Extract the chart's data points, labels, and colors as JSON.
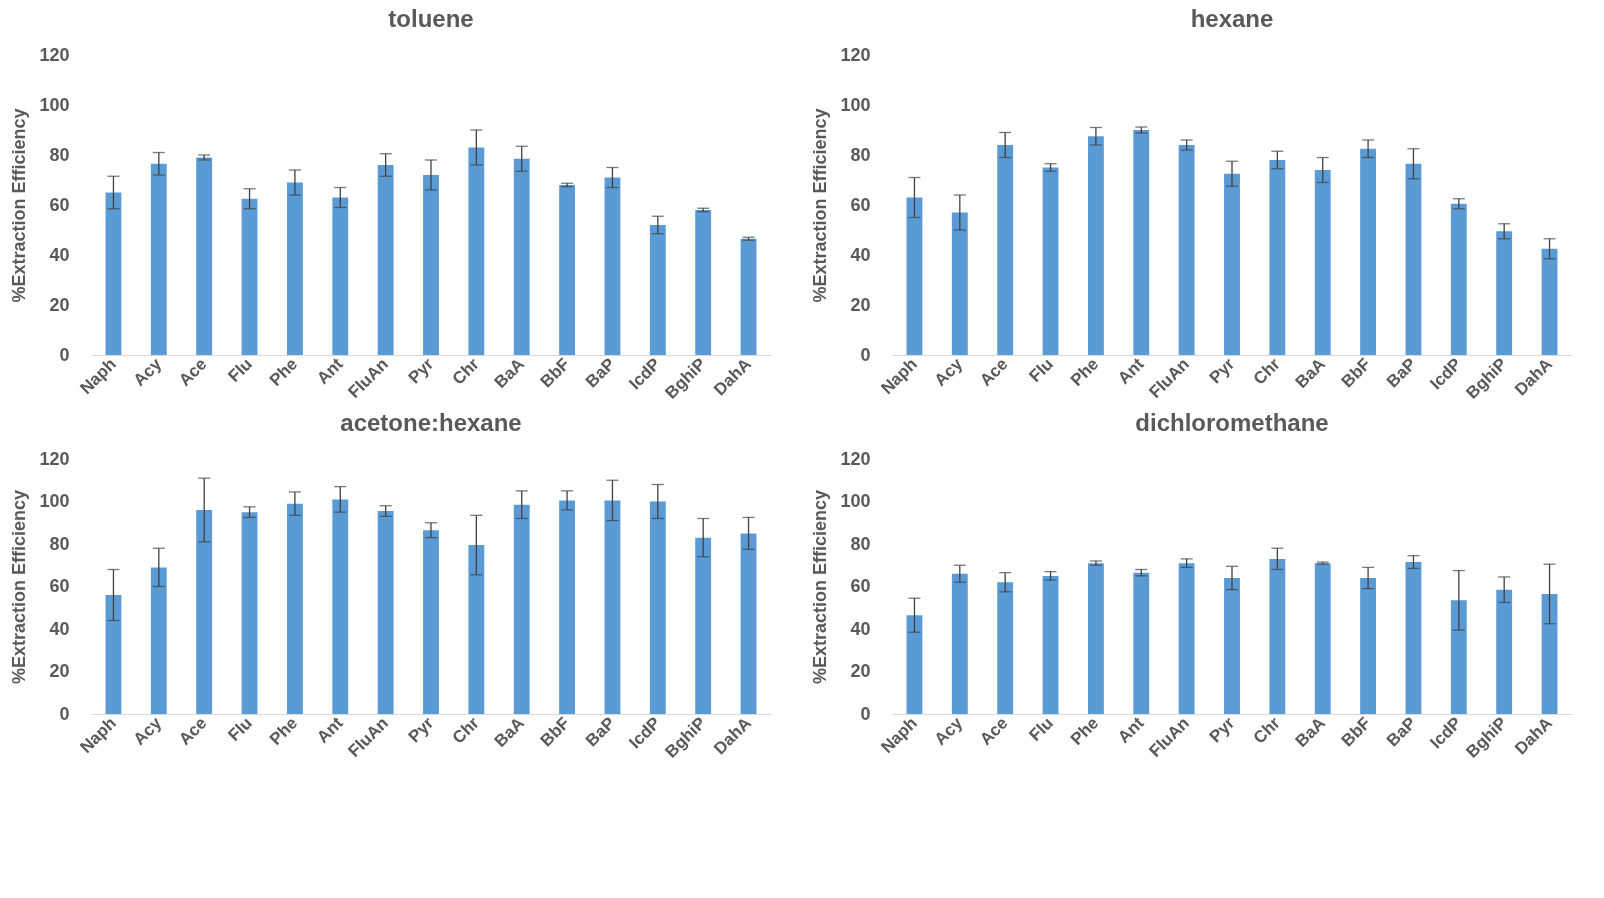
{
  "chart_data": [
    {
      "type": "bar",
      "title": "toluene",
      "ylabel": "%Extraction Efficiency",
      "categories": [
        "Naph",
        "Acy",
        "Ace",
        "Flu",
        "Phe",
        "Ant",
        "FluAn",
        "Pyr",
        "Chr",
        "BaA",
        "BbF",
        "BaP",
        "IcdP",
        "BghiP",
        "DahA"
      ],
      "color": "#5b9bd5",
      "ylim": [
        0,
        120
      ],
      "yticks": [
        0,
        20,
        40,
        60,
        80,
        100,
        120
      ],
      "values": [
        65,
        76.5,
        79,
        62.5,
        69,
        63,
        76,
        72,
        83,
        78.5,
        68,
        71,
        52,
        58,
        46.5
      ],
      "errors": [
        6.5,
        4.5,
        1,
        4,
        5,
        4,
        4.5,
        6,
        7,
        5,
        0.7,
        4,
        3.5,
        0.7,
        0.6
      ]
    },
    {
      "type": "bar",
      "title": "hexane",
      "ylabel": "%Extraction Efficiency",
      "categories": [
        "Naph",
        "Acy",
        "Ace",
        "Flu",
        "Phe",
        "Ant",
        "FluAn",
        "Pyr",
        "Chr",
        "BaA",
        "BbF",
        "BaP",
        "IcdP",
        "BghiP",
        "DahA"
      ],
      "color": "#5b9bd5",
      "ylim": [
        0,
        120
      ],
      "yticks": [
        0,
        20,
        40,
        60,
        80,
        100,
        120
      ],
      "values": [
        63,
        57,
        84,
        75,
        87.5,
        90,
        84,
        72.5,
        78,
        74,
        82.5,
        76.5,
        60.5,
        49.5,
        42.5
      ],
      "errors": [
        8,
        7,
        5,
        1.5,
        3.5,
        1.2,
        2,
        5,
        3.5,
        5,
        3.5,
        6,
        2,
        3,
        4
      ]
    },
    {
      "type": "bar",
      "title": "acetone:hexane",
      "ylabel": "%Extraction Efficiency",
      "categories": [
        "Naph",
        "Acy",
        "Ace",
        "Flu",
        "Phe",
        "Ant",
        "FluAn",
        "Pyr",
        "Chr",
        "BaA",
        "BbF",
        "BaP",
        "IcdP",
        "BghiP",
        "DahA"
      ],
      "color": "#5b9bd5",
      "ylim": [
        0,
        120
      ],
      "yticks": [
        0,
        20,
        40,
        60,
        80,
        100,
        120
      ],
      "values": [
        56,
        69,
        96,
        95,
        99,
        101,
        95.5,
        86.5,
        79.5,
        98.5,
        100.5,
        100.5,
        100,
        83,
        85
      ],
      "errors": [
        12,
        9,
        15,
        2.5,
        5.5,
        6,
        2.5,
        3.5,
        14,
        6.5,
        4.5,
        9.5,
        8,
        9,
        7.5
      ]
    },
    {
      "type": "bar",
      "title": "dichloromethane",
      "ylabel": "%Extraction Efficiency",
      "categories": [
        "Naph",
        "Acy",
        "Ace",
        "Flu",
        "Phe",
        "Ant",
        "FluAn",
        "Pyr",
        "Chr",
        "BaA",
        "BbF",
        "BaP",
        "IcdP",
        "BghiP",
        "DahA"
      ],
      "color": "#5b9bd5",
      "ylim": [
        0,
        120
      ],
      "yticks": [
        0,
        20,
        40,
        60,
        80,
        100,
        120
      ],
      "values": [
        46.5,
        66,
        62,
        65,
        71,
        66.5,
        71,
        64,
        73,
        71,
        64,
        71.5,
        53.5,
        58.5,
        56.5
      ],
      "errors": [
        8,
        4,
        4.5,
        2,
        1,
        1.5,
        2,
        5.5,
        5,
        0.5,
        5,
        3,
        14,
        6,
        14
      ]
    }
  ]
}
